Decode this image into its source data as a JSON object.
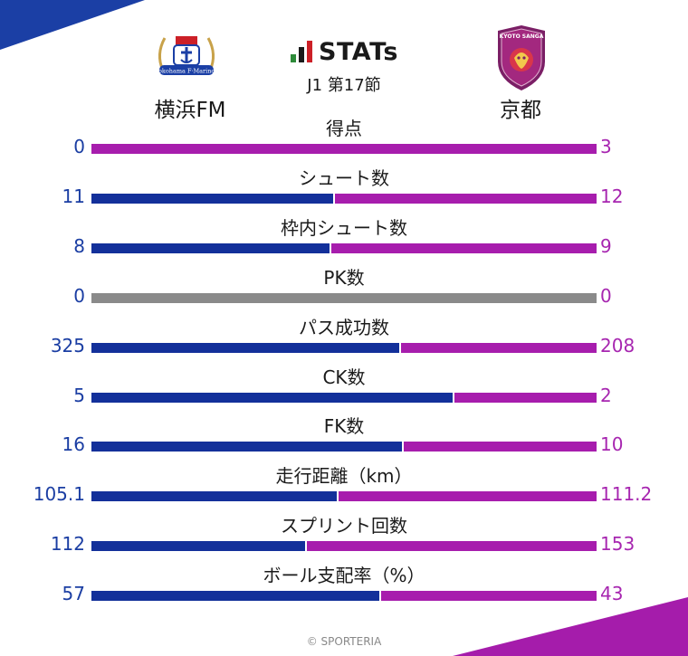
{
  "header": {
    "brand": "STATs",
    "round": "J1 第17節",
    "home_team": "横浜FM",
    "away_team": "京都",
    "home_logo_text": "Yokohama F·Marinos",
    "away_logo_text": "KYOTO SANGA"
  },
  "colors": {
    "home": "#13309a",
    "away": "#a71dad",
    "zero": "#8a8a8a",
    "home_text": "#1b3ea3",
    "away_text": "#a726b0"
  },
  "chart_data": {
    "type": "bar",
    "orientation": "horizontal",
    "stacked": true,
    "normalized": true,
    "categories": [
      "得点",
      "シュート数",
      "枠内シュート数",
      "PK数",
      "パス成功数",
      "CK数",
      "FK数",
      "走行距離（km）",
      "スプリント回数",
      "ボール支配率（%）"
    ],
    "series": [
      {
        "name": "横浜FM",
        "values": [
          0,
          11,
          8,
          0,
          325,
          5,
          16,
          105.1,
          112,
          57
        ]
      },
      {
        "name": "京都",
        "values": [
          3,
          12,
          9,
          0,
          208,
          2,
          10,
          111.2,
          153,
          43
        ]
      }
    ],
    "home_labels": [
      "0",
      "11",
      "8",
      "0",
      "325",
      "5",
      "16",
      "105.1",
      "112",
      "57"
    ],
    "away_labels": [
      "3",
      "12",
      "9",
      "0",
      "208",
      "2",
      "10",
      "111.2",
      "153",
      "43"
    ]
  },
  "footer": "© SPORTERIA"
}
